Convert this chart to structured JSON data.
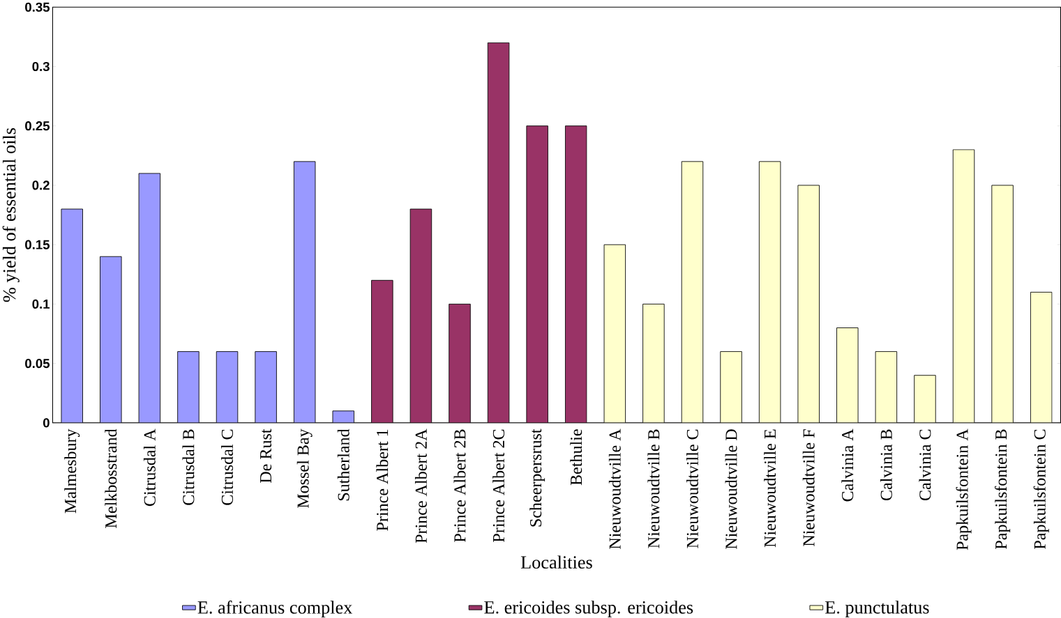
{
  "chart_data": {
    "type": "bar",
    "xlabel": "Localities",
    "ylabel": "% yield of essential oils",
    "categories": [
      "Malmesbury",
      "Melkbosstrand",
      "Citrusdal A",
      "Citrusdal B",
      "Citrusdal C",
      "De Rust",
      "Mossel Bay",
      "Sutherland",
      "Prince Albert 1",
      "Prince Albert 2A",
      "Prince Albert 2B",
      "Prince Albert 2C",
      "Scheerpersrust",
      "Bethulie",
      "Nieuwoudtville A",
      "Nieuwoudtville B",
      "Nieuwoudtville C",
      "Nieuwoudtville D",
      "Nieuwoudtville E",
      "Nieuwoudtville F",
      "Calvinia A",
      "Calvinia B",
      "Calvinia C",
      "Papkuilsfontein A",
      "Papkuilsfontein B",
      "Papkuilsfontein C"
    ],
    "series": [
      {
        "name": "E. africanus complex",
        "color": "#9999ff",
        "values": [
          0.18,
          0.14,
          0.21,
          0.06,
          0.06,
          0.06,
          0.22,
          0.01,
          null,
          null,
          null,
          null,
          null,
          null,
          null,
          null,
          null,
          null,
          null,
          null,
          null,
          null,
          null,
          null,
          null,
          null
        ]
      },
      {
        "name": "E. ericoides subsp.  ericoides",
        "color": "#993366",
        "values": [
          null,
          null,
          null,
          null,
          null,
          null,
          null,
          null,
          0.12,
          0.18,
          0.1,
          0.32,
          0.25,
          0.25,
          null,
          null,
          null,
          null,
          null,
          null,
          null,
          null,
          null,
          null,
          null,
          null
        ]
      },
      {
        "name": "E.  punctulatus",
        "color": "#ffffcc",
        "values": [
          null,
          null,
          null,
          null,
          null,
          null,
          null,
          null,
          null,
          null,
          null,
          null,
          null,
          null,
          0.15,
          0.1,
          0.22,
          0.06,
          0.22,
          0.2,
          0.08,
          0.06,
          0.04,
          0.23,
          0.2,
          0.11
        ]
      }
    ],
    "ylim": [
      0,
      0.35
    ],
    "yticks": [
      0,
      0.05,
      0.1,
      0.15,
      0.2,
      0.25,
      0.3,
      0.35
    ],
    "grid": false,
    "legend": "bottom"
  }
}
